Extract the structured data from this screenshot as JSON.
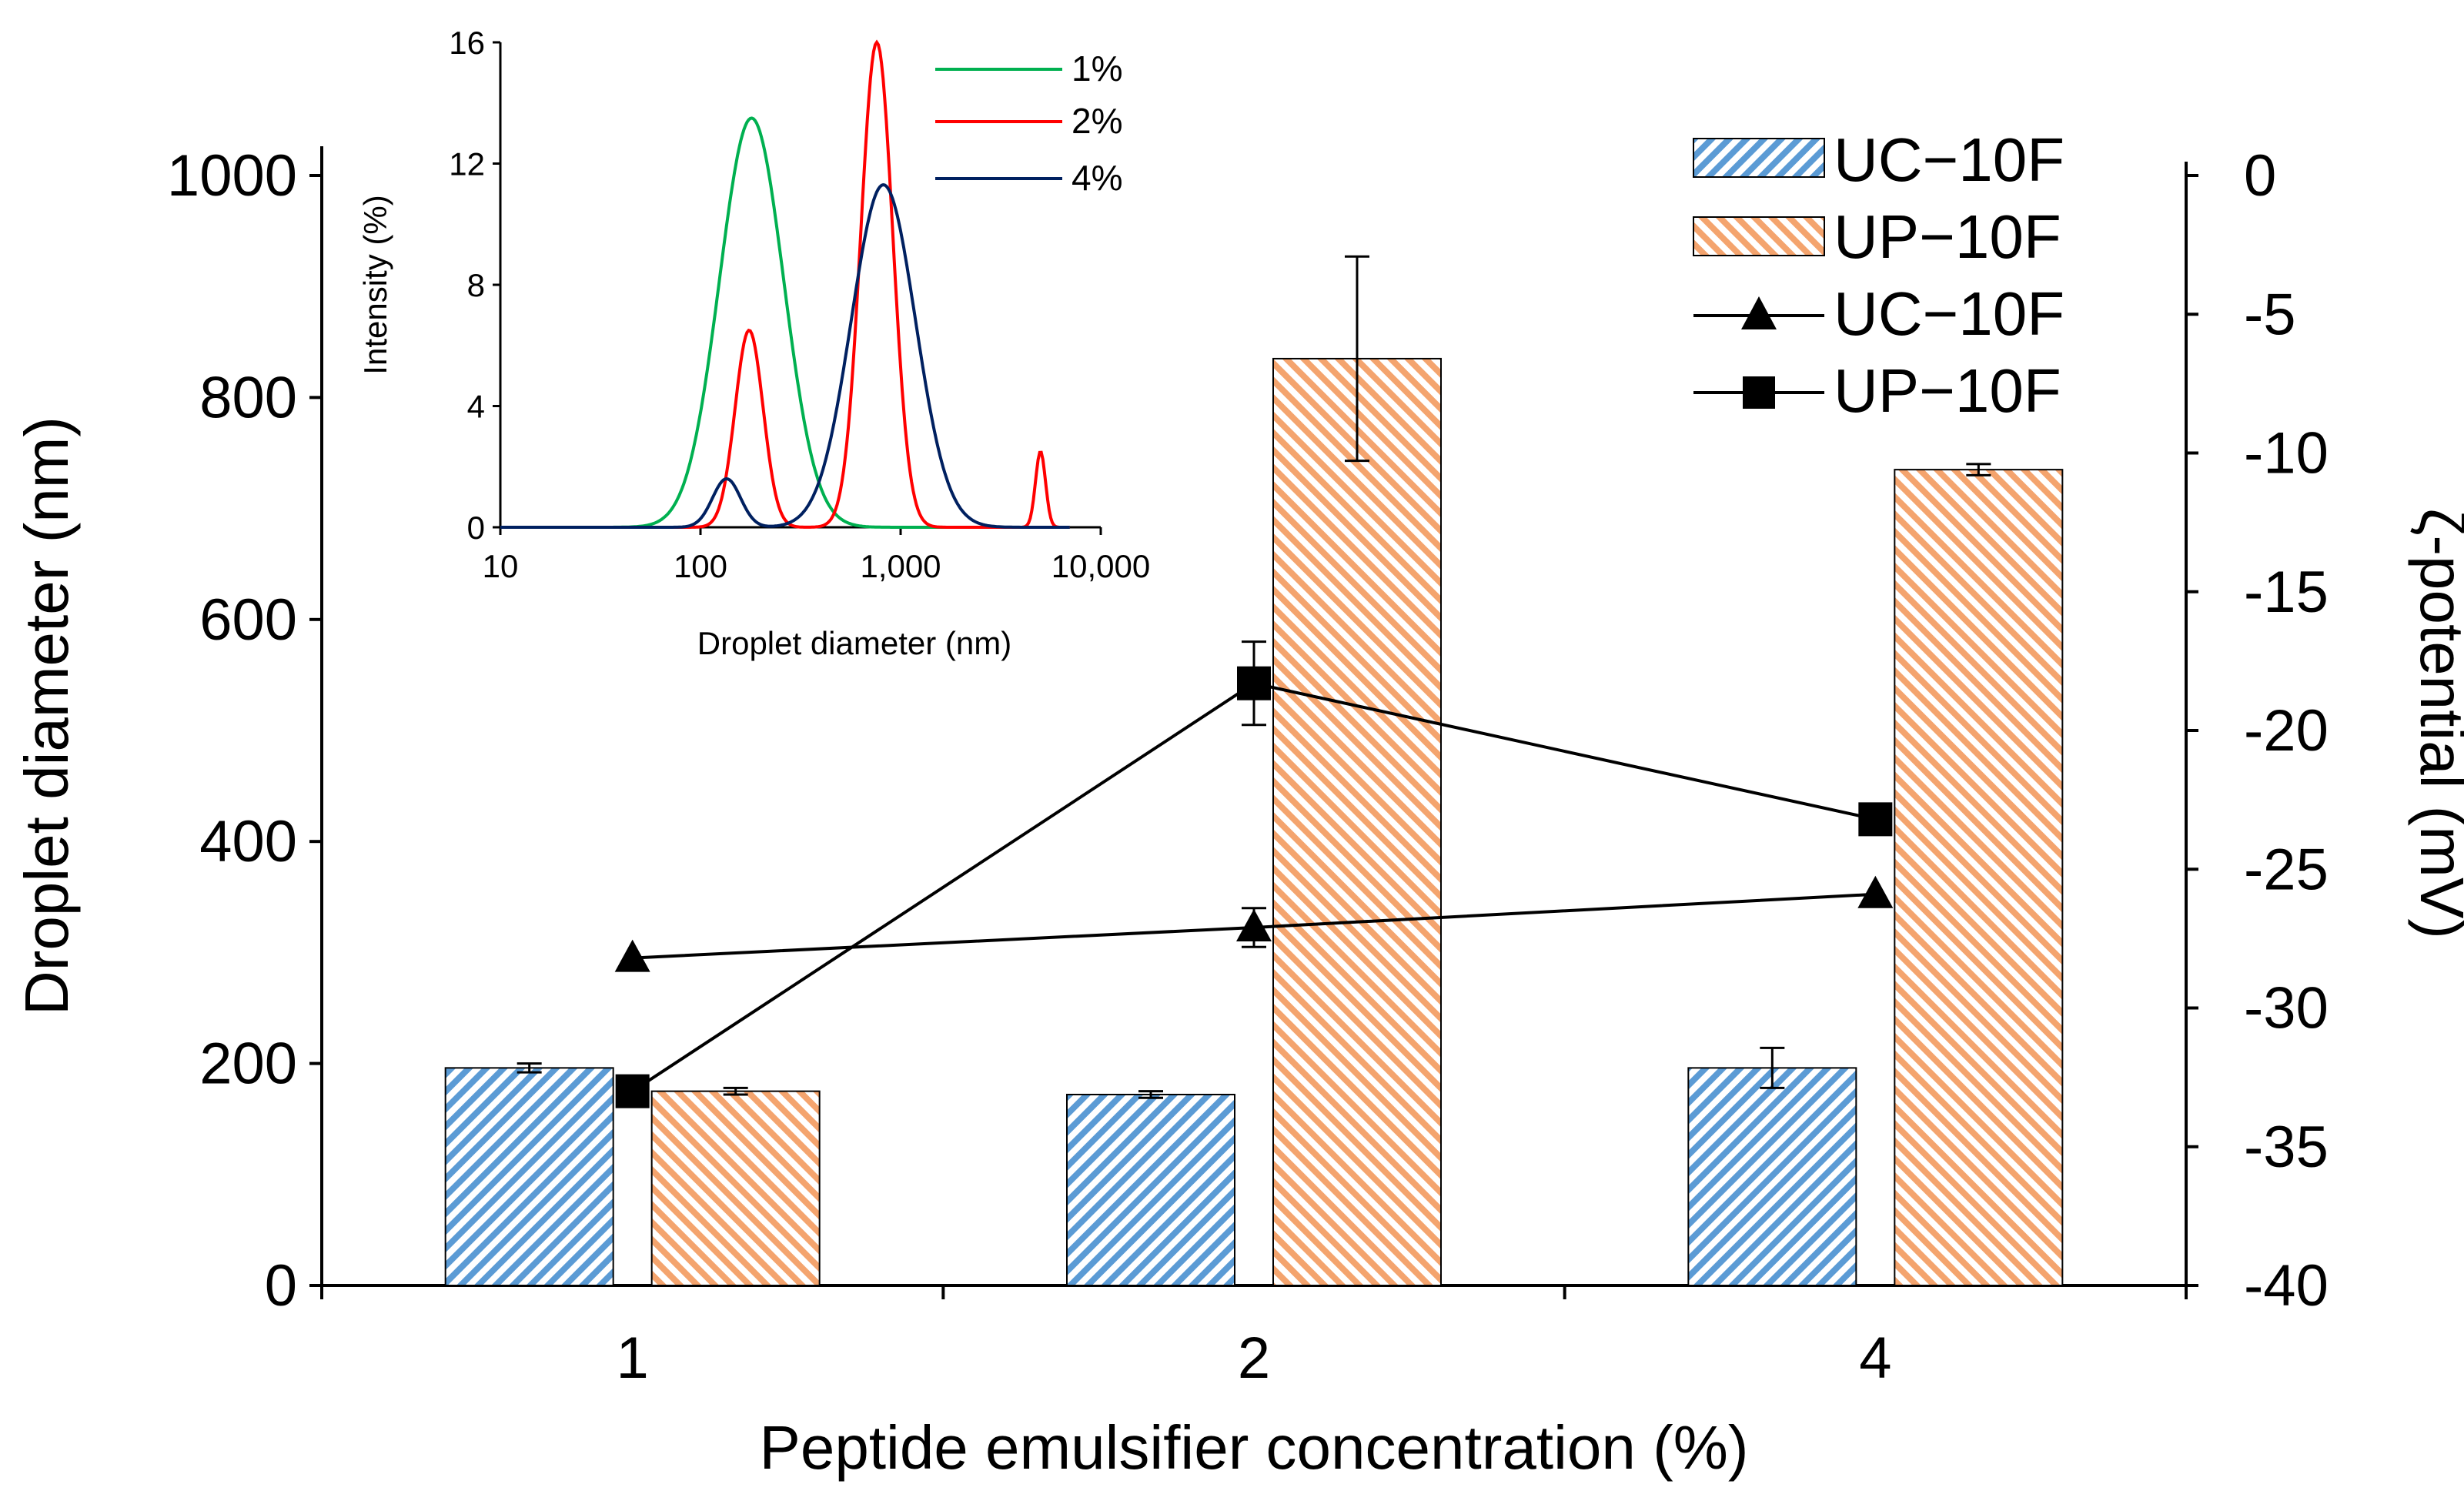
{
  "chart_data": [
    {
      "type": "bar+line",
      "name": "main",
      "xlabel": "Peptide emulsifier concentration (%)",
      "ylabel": "Droplet diameter (nm)",
      "y2label": "ζ-potential (mV)",
      "categories": [
        "1",
        "2",
        "4"
      ],
      "ylim": [
        0,
        1000
      ],
      "yticks": [
        0,
        200,
        400,
        600,
        800,
        1000
      ],
      "ytick_labels": [
        "0",
        "200",
        "400",
        "600",
        "800",
        "1000"
      ],
      "y2lim": [
        -40,
        0
      ],
      "y2ticks": [
        -40,
        -35,
        -30,
        -25,
        -20,
        -15,
        -10,
        -5,
        0
      ],
      "y2tick_labels": [
        "-40",
        "-35",
        "-30",
        "-25",
        "-20",
        "-15",
        "-10",
        "-5",
        "0"
      ],
      "bar_series": [
        {
          "name": "UC−10F",
          "axis": "left",
          "color": "#5b9bd5",
          "pattern": "hatched",
          "values": [
            196,
            172,
            196
          ],
          "errors": [
            4,
            3,
            18
          ]
        },
        {
          "name": "UP−10F",
          "axis": "left",
          "color": "#f4a46e",
          "pattern": "hatched",
          "values": [
            175,
            835,
            735
          ],
          "errors": [
            3,
            92,
            5
          ]
        }
      ],
      "line_series": [
        {
          "name": "UC−10F",
          "axis": "right",
          "marker": "triangle",
          "values": [
            -28.2,
            -27.1,
            -25.9
          ],
          "errors": [
            0,
            0.7,
            0
          ]
        },
        {
          "name": "UP−10F",
          "axis": "right",
          "marker": "square",
          "values": [
            -33.0,
            -18.3,
            -23.2
          ],
          "errors": [
            0,
            1.5,
            0
          ]
        }
      ],
      "legend": {
        "position": "top-right"
      }
    },
    {
      "type": "line",
      "name": "inset",
      "xlabel": "Droplet diameter (nm)",
      "ylabel": "Intensity (%)",
      "xscale": "log",
      "xlim": [
        10,
        10000
      ],
      "xticks": [
        10,
        100,
        1000,
        10000
      ],
      "xtick_labels": [
        "10",
        "100",
        "1,000",
        "10,000"
      ],
      "ylim": [
        0,
        16
      ],
      "yticks": [
        0,
        4,
        8,
        12,
        16
      ],
      "ytick_labels": [
        "0",
        "4",
        "8",
        "12",
        "16"
      ],
      "legend": {
        "position": "top-right"
      },
      "series": [
        {
          "name": "1%",
          "color": "#00b050",
          "peaks": [
            {
              "center": 180,
              "height": 13.5,
              "width": 0.16
            }
          ]
        },
        {
          "name": "2%",
          "color": "#ff0000",
          "peaks": [
            {
              "center": 175,
              "height": 6.5,
              "width": 0.07
            },
            {
              "center": 760,
              "height": 16.0,
              "width": 0.08
            },
            {
              "center": 5000,
              "height": 2.5,
              "width": 0.025
            }
          ]
        },
        {
          "name": "4%",
          "color": "#002060",
          "peaks": [
            {
              "center": 135,
              "height": 1.6,
              "width": 0.07
            },
            {
              "center": 820,
              "height": 11.3,
              "width": 0.16
            }
          ]
        }
      ]
    }
  ]
}
